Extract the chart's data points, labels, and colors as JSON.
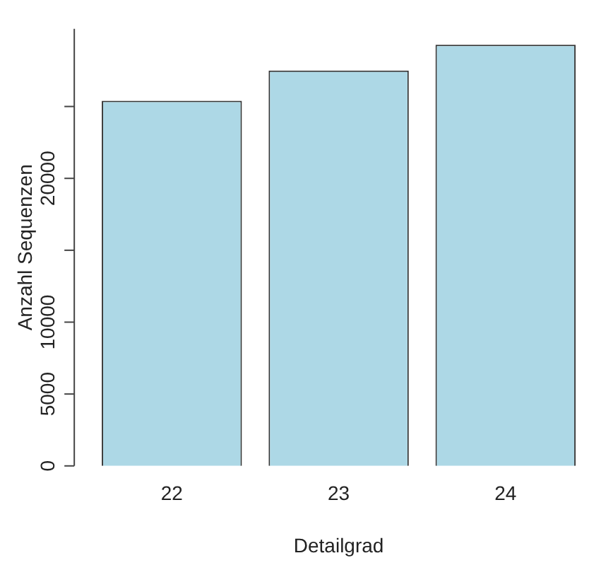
{
  "chart_data": {
    "type": "bar",
    "xlabel": "Detailgrad",
    "ylabel": "Anzahl Sequenzen",
    "categories": [
      "22",
      "23",
      "24"
    ],
    "values": [
      25400,
      27500,
      29300
    ],
    "color": "#add8e6",
    "ylim": [
      0,
      30400
    ],
    "yticks": [
      0,
      5000,
      10000,
      {
        "value": 15000,
        "label": null
      },
      20000,
      {
        "value": 25000,
        "label": null
      }
    ],
    "grid": false,
    "legend": false
  }
}
